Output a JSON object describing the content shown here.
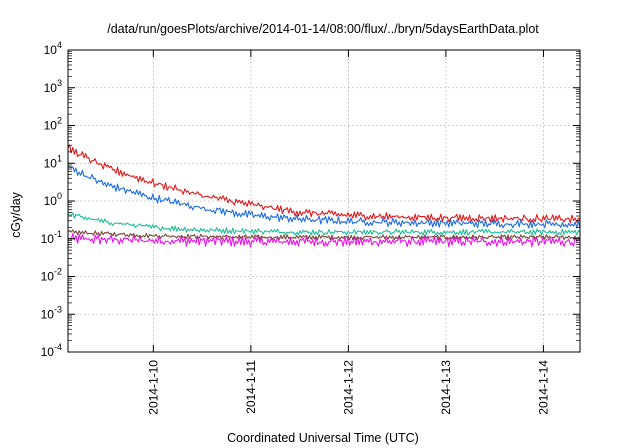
{
  "chart_data": {
    "type": "line",
    "title": "/data/run/goesPlots/archive/2014-01-14/08:00/flux/../bryn/5daysEarthData.plot",
    "xlabel": "Coordinated Universal Time (UTC)",
    "ylabel": "cGy/day",
    "yscale": "log",
    "ylim": [
      0.0001,
      10000
    ],
    "xlim": [
      "2014-01-09T03:00",
      "2014-01-14T09:00"
    ],
    "grid": true,
    "y_ticks": [
      {
        "base": "10",
        "exp": "-4"
      },
      {
        "base": "10",
        "exp": "-3"
      },
      {
        "base": "10",
        "exp": "-2"
      },
      {
        "base": "10",
        "exp": "-1"
      },
      {
        "base": "10",
        "exp": "0"
      },
      {
        "base": "10",
        "exp": "1"
      },
      {
        "base": "10",
        "exp": "2"
      },
      {
        "base": "10",
        "exp": "3"
      },
      {
        "base": "10",
        "exp": "4"
      }
    ],
    "x_ticks": [
      {
        "value": "2014-01-10T00:00",
        "label": "2014-1-10"
      },
      {
        "value": "2014-01-11T00:00",
        "label": "2014-1-11"
      },
      {
        "value": "2014-01-12T00:00",
        "label": "2014-1-12"
      },
      {
        "value": "2014-01-13T00:00",
        "label": "2014-1-13"
      },
      {
        "value": "2014-01-14T00:00",
        "label": "2014-1-14"
      }
    ],
    "series": [
      {
        "color": "#e41a1c",
        "x": [
          "2014-01-09T03:00",
          "2014-01-09T12:00",
          "2014-01-10T00:00",
          "2014-01-10T12:00",
          "2014-01-11T00:00",
          "2014-01-11T12:00",
          "2014-01-12T00:00",
          "2014-01-12T12:00",
          "2014-01-13T00:00",
          "2014-01-13T12:00",
          "2014-01-14T00:00",
          "2014-01-14T09:00"
        ],
        "y": [
          25,
          8,
          3,
          1.4,
          0.8,
          0.5,
          0.42,
          0.38,
          0.36,
          0.35,
          0.34,
          0.32
        ]
      },
      {
        "color": "#1f6fe0",
        "x": [
          "2014-01-09T03:00",
          "2014-01-09T12:00",
          "2014-01-10T00:00",
          "2014-01-10T12:00",
          "2014-01-11T00:00",
          "2014-01-11T12:00",
          "2014-01-12T00:00",
          "2014-01-12T12:00",
          "2014-01-13T00:00",
          "2014-01-13T12:00",
          "2014-01-14T00:00",
          "2014-01-14T09:00"
        ],
        "y": [
          8,
          2.8,
          1.2,
          0.65,
          0.42,
          0.33,
          0.29,
          0.27,
          0.26,
          0.25,
          0.25,
          0.24
        ]
      },
      {
        "color": "#1fbf9a",
        "x": [
          "2014-01-09T03:00",
          "2014-01-09T12:00",
          "2014-01-10T00:00",
          "2014-01-10T12:00",
          "2014-01-11T00:00",
          "2014-01-11T12:00",
          "2014-01-12T00:00",
          "2014-01-12T12:00",
          "2014-01-13T00:00",
          "2014-01-13T12:00",
          "2014-01-14T00:00",
          "2014-01-14T09:00"
        ],
        "y": [
          0.45,
          0.28,
          0.2,
          0.17,
          0.16,
          0.15,
          0.15,
          0.15,
          0.15,
          0.15,
          0.15,
          0.15
        ]
      },
      {
        "color": "#7b4a3a",
        "x": [
          "2014-01-09T03:00",
          "2014-01-10T00:00",
          "2014-01-11T00:00",
          "2014-01-12T00:00",
          "2014-01-13T00:00",
          "2014-01-14T00:00",
          "2014-01-14T09:00"
        ],
        "y": [
          0.15,
          0.12,
          0.11,
          0.11,
          0.11,
          0.11,
          0.11
        ]
      },
      {
        "color": "#ee11ee",
        "x": [
          "2014-01-09T03:00",
          "2014-01-10T00:00",
          "2014-01-11T00:00",
          "2014-01-12T00:00",
          "2014-01-13T00:00",
          "2014-01-14T00:00",
          "2014-01-14T09:00"
        ],
        "y": [
          0.1,
          0.09,
          0.085,
          0.085,
          0.085,
          0.085,
          0.085
        ]
      }
    ]
  }
}
